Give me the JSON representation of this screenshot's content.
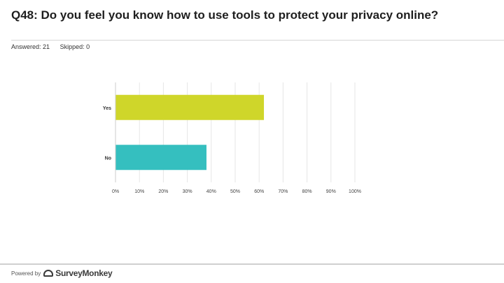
{
  "header": {
    "title": "Q48: Do you feel you know how to use tools to protect your privacy online?",
    "answered": "Answered: 21",
    "skipped": "Skipped: 0"
  },
  "footer": {
    "powered_by": "Powered by",
    "brand": "SurveyMonkey",
    "brand_icon": "surveymonkey-logo-icon"
  },
  "chart_data": {
    "type": "bar",
    "orientation": "horizontal",
    "categories": [
      "Yes",
      "No"
    ],
    "values": [
      62,
      38
    ],
    "xlim": [
      0,
      100
    ],
    "ticks": [
      "0%",
      "10%",
      "20%",
      "30%",
      "40%",
      "50%",
      "60%",
      "70%",
      "80%",
      "90%",
      "100%"
    ],
    "grid": true,
    "colors": [
      "#cfd62a",
      "#35bfbf"
    ],
    "title": "",
    "xlabel": "",
    "ylabel": ""
  }
}
